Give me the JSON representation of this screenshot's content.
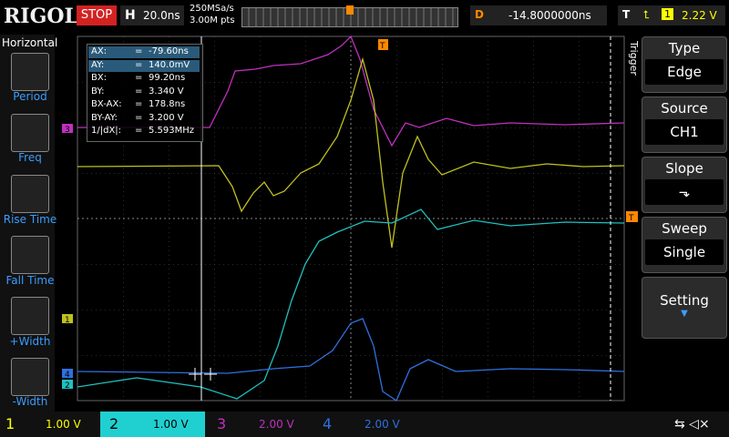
{
  "top_bar": {
    "brand": "RIGOL",
    "run_state": "STOP",
    "timebase_label": "H",
    "timebase": "20.0ns",
    "sample_rate": "250MSa/s",
    "memory_depth": "3.00M pts",
    "delay_label": "D",
    "delay": "-14.8000000ns",
    "trigger_label": "T",
    "trigger_channel": "1",
    "trigger_level": "2.22 V"
  },
  "left_menu": {
    "title": "Horizontal",
    "items": [
      "Period",
      "Freq",
      "Rise Time",
      "Fall Time",
      "+Width",
      "-Width"
    ]
  },
  "cursor_box": {
    "rows": [
      [
        "AX:",
        "=",
        "-79.60ns"
      ],
      [
        "AY:",
        "=",
        "140.0mV"
      ],
      [
        "BX:",
        "=",
        "99.20ns"
      ],
      [
        "BY:",
        "=",
        "3.340 V"
      ],
      [
        "BX-AX:",
        "=",
        "178.8ns"
      ],
      [
        "BY-AY:",
        "=",
        "3.200 V"
      ],
      [
        "1/|dX|:",
        "=",
        "5.593MHz"
      ]
    ]
  },
  "channel_markers": [
    "3",
    "1",
    "4",
    "2"
  ],
  "trigger_marker": "T",
  "right_menu": {
    "title": "Trigger",
    "items": [
      {
        "label": "Type",
        "value": "Edge"
      },
      {
        "label": "Source",
        "value": "CH1"
      },
      {
        "label": "Slope"
      },
      {
        "label": "Sweep",
        "value": "Single"
      },
      {
        "label": "Setting"
      }
    ]
  },
  "bottom_bar": {
    "channels": [
      {
        "number": "1",
        "scale": "1.00 V"
      },
      {
        "number": "2",
        "scale": "1.00 V"
      },
      {
        "number": "3",
        "scale": "2.00 V"
      },
      {
        "number": "4",
        "scale": "2.00 V"
      }
    ]
  }
}
